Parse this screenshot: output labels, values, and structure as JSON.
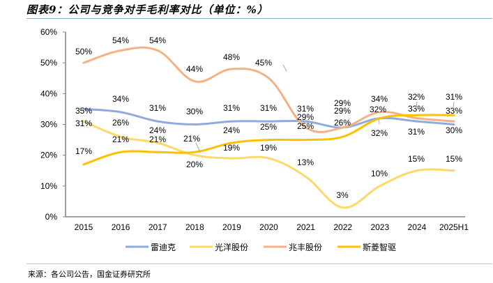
{
  "title": "图表9：公司与竞争对手毛利率对比（单位：%）",
  "source": "来源：各公司公告，国金证券研究所",
  "chart_data": {
    "type": "line",
    "title": "图表9：公司与竞争对手毛利率对比（单位：%）",
    "xlabel": "",
    "ylabel": "",
    "categories": [
      "2015",
      "2016",
      "2017",
      "2018",
      "2019",
      "2020",
      "2021",
      "2022",
      "2023",
      "2024",
      "2025H1"
    ],
    "ylim": [
      0,
      60
    ],
    "yticks": [
      0,
      10,
      20,
      30,
      40,
      50,
      60
    ],
    "ytick_labels": [
      "0%",
      "10%",
      "20%",
      "30%",
      "40%",
      "50%",
      "60%"
    ],
    "grid": false,
    "legend_position": "bottom",
    "smooth": true,
    "series": [
      {
        "name": "雷迪克",
        "color": "#8FAADC",
        "values": [
          35,
          34,
          31,
          30,
          31,
          31,
          31,
          29,
          32,
          31,
          30
        ]
      },
      {
        "name": "光洋股份",
        "color": "#FFD966",
        "values": [
          31,
          26,
          24,
          20,
          19,
          19,
          13,
          3,
          10,
          15,
          15
        ]
      },
      {
        "name": "兆丰股份",
        "color": "#F4B183",
        "values": [
          50,
          54,
          54,
          44,
          48,
          45,
          29,
          29,
          34,
          32,
          31
        ]
      },
      {
        "name": "斯菱智驱",
        "color": "#FFC000",
        "values": [
          17,
          21,
          21,
          21,
          24,
          25,
          25,
          26,
          32,
          33,
          33
        ]
      }
    ]
  }
}
